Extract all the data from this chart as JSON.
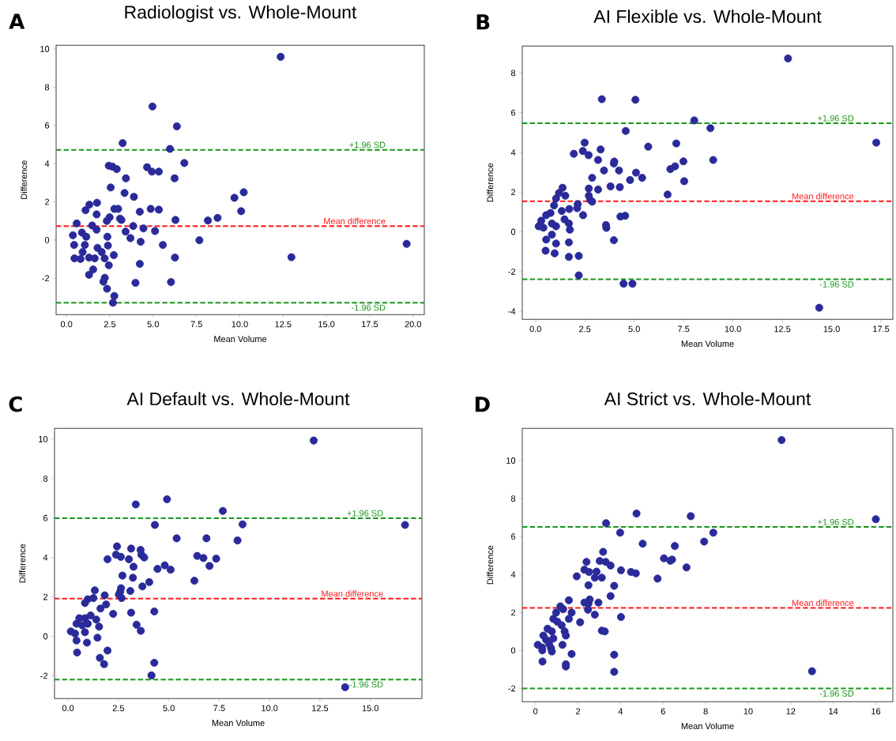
{
  "chart_data": [
    {
      "type": "scatter",
      "title": "Radiologist vs. Whole-Mount",
      "xlabel": "Mean Volume",
      "ylabel": "Difference",
      "color": "#2a2a9a",
      "marker": "circle",
      "x": [
        12.36,
        4.96,
        6.37,
        3.24,
        5.97,
        6.8,
        2.44,
        2.65,
        2.9,
        4.65,
        4.93,
        5.33,
        3.43,
        6.24,
        2.55,
        3.35,
        3.89,
        10.23,
        9.69,
        10.08,
        1.76,
        1.32,
        1.1,
        2.76,
        2.98,
        4.86,
        5.33,
        4.23,
        1.74,
        2.49,
        3.09,
        3.17,
        6.29,
        8.16,
        8.72,
        0.59,
        2.33,
        1.48,
        1.74,
        3.85,
        4.44,
        3.41,
        5.11,
        3.69,
        0.37,
        0.89,
        1.14,
        2.36,
        7.67,
        4.28,
        19.63,
        0.44,
        1.06,
        2.39,
        5.56,
        0.93,
        1.79,
        2.03,
        2.73,
        0.46,
        0.81,
        1.3,
        1.63,
        2.2,
        6.26,
        12.98,
        2.44,
        4.23,
        1.54,
        1.3,
        2.21,
        2.13,
        3.98,
        6.03,
        2.34,
        2.76,
        2.68
      ],
      "values": [
        9.59,
        6.99,
        5.95,
        5.07,
        4.77,
        4.03,
        3.89,
        3.84,
        3.71,
        3.81,
        3.58,
        3.58,
        3.23,
        3.23,
        2.75,
        2.46,
        2.26,
        2.5,
        2.21,
        1.51,
        1.95,
        1.85,
        1.56,
        1.63,
        1.63,
        1.63,
        1.59,
        1.48,
        1.34,
        1.19,
        1.12,
        1.05,
        1.05,
        1.02,
        1.16,
        0.87,
        1.0,
        0.76,
        0.54,
        0.73,
        0.61,
        0.44,
        0.47,
        0.1,
        0.25,
        0.39,
        0.17,
        0.17,
        -0.01,
        -0.09,
        -0.2,
        -0.26,
        -0.26,
        -0.29,
        -0.26,
        -0.63,
        -0.41,
        -0.63,
        -0.79,
        -0.96,
        -0.99,
        -0.92,
        -0.96,
        -0.96,
        -0.92,
        -0.9,
        -1.32,
        -1.25,
        -1.54,
        -1.82,
        -1.98,
        -2.18,
        -2.24,
        -2.2,
        -2.55,
        -2.93,
        -3.28
      ],
      "xlim": [
        -0.6,
        20.65
      ],
      "ylim": [
        -3.9,
        10.2
      ],
      "xticks": [
        {
          "value": 0,
          "label": "0.0"
        },
        {
          "value": 2.5,
          "label": "2.5"
        },
        {
          "value": 5,
          "label": "5.0"
        },
        {
          "value": 7.5,
          "label": "7.5"
        },
        {
          "value": 10,
          "label": "10.0"
        },
        {
          "value": 12.5,
          "label": "12.5"
        },
        {
          "value": 15,
          "label": "15.0"
        },
        {
          "value": 17.5,
          "label": "17.5"
        },
        {
          "value": 20,
          "label": "20.0"
        }
      ],
      "yticks": [
        -2,
        0,
        2,
        4,
        6,
        8,
        10
      ],
      "ref_lines": [
        {
          "axis": "y",
          "value": 4.72,
          "label": "+1.96 SD",
          "color": "#1a961a",
          "line_style": "dashed"
        },
        {
          "axis": "y",
          "value": 0.73,
          "label": "Mean difference",
          "color": "#ff1a1a",
          "line_style": "dashed"
        },
        {
          "axis": "y",
          "value": -3.28,
          "label": "-1.96 SD",
          "color": "#1a961a",
          "line_style": "dashed"
        }
      ],
      "annotations": [
        "A"
      ]
    },
    {
      "type": "scatter",
      "title": "AI Flexible vs. Whole-Mount",
      "xlabel": "Mean Volume",
      "ylabel": "Difference",
      "color": "#2a2a9a",
      "marker": "circle",
      "x": [
        12.79,
        3.36,
        5.06,
        8.04,
        8.86,
        4.57,
        17.26,
        2.49,
        7.13,
        5.71,
        3.3,
        2.4,
        2.69,
        1.94,
        9.0,
        3.17,
        7.49,
        3.99,
        3.97,
        7.07,
        6.83,
        3.47,
        4.23,
        5.09,
        2.87,
        5.4,
        4.79,
        7.53,
        3.8,
        4.27,
        2.7,
        3.17,
        1.37,
        2.7,
        6.69,
        1.19,
        1.51,
        2.77,
        2.87,
        1.04,
        2.14,
        0.94,
        1.71,
        1.33,
        2.11,
        2.41,
        4.3,
        4.54,
        0.54,
        0.76,
        0.29,
        1.47,
        1.69,
        0.83,
        1.04,
        3.57,
        3.59,
        0.16,
        0.4,
        1.74,
        0.83,
        3.97,
        0.54,
        1.04,
        1.69,
        0.51,
        0.97,
        1.69,
        2.19,
        2.19,
        4.46,
        4.91,
        14.37
      ],
      "values": [
        8.73,
        6.68,
        6.65,
        5.61,
        5.22,
        5.08,
        4.49,
        4.49,
        4.45,
        4.29,
        4.15,
        4.07,
        3.86,
        3.93,
        3.62,
        3.62,
        3.55,
        3.54,
        3.44,
        3.3,
        3.16,
        3.09,
        3.09,
        2.98,
        2.72,
        2.72,
        2.61,
        2.55,
        2.29,
        2.25,
        2.18,
        2.13,
        2.22,
        1.82,
        1.88,
        1.96,
        1.82,
        1.61,
        1.52,
        1.68,
        1.4,
        1.33,
        1.15,
        1.05,
        1.19,
        0.84,
        0.77,
        0.81,
        0.84,
        0.95,
        0.56,
        0.63,
        0.42,
        0.42,
        0.28,
        0.34,
        0.2,
        0.28,
        0.21,
        0.11,
        -0.14,
        -0.42,
        -0.39,
        -0.59,
        -0.53,
        -0.95,
        -1.08,
        -1.26,
        -1.21,
        -2.19,
        -2.61,
        -2.61,
        -3.82
      ],
      "xlim": [
        -0.67,
        18.1
      ],
      "ylim": [
        -4.4,
        9.36
      ],
      "xticks": [
        {
          "value": 0,
          "label": "0.0"
        },
        {
          "value": 2.5,
          "label": "2.5"
        },
        {
          "value": 5,
          "label": "5.0"
        },
        {
          "value": 7.5,
          "label": "7.5"
        },
        {
          "value": 10,
          "label": "10.0"
        },
        {
          "value": 12.5,
          "label": "12.5"
        },
        {
          "value": 15,
          "label": "15.0"
        },
        {
          "value": 17.5,
          "label": "17.5"
        }
      ],
      "yticks": [
        -4,
        -2,
        0,
        2,
        4,
        6,
        8
      ],
      "ref_lines": [
        {
          "axis": "y",
          "value": 5.47,
          "label": "+1.96 SD",
          "color": "#1a961a",
          "line_style": "dashed"
        },
        {
          "axis": "y",
          "value": 1.54,
          "label": "Mean difference",
          "color": "#ff1a1a",
          "line_style": "dashed"
        },
        {
          "axis": "y",
          "value": -2.39,
          "label": "-1.96 SD",
          "color": "#1a961a",
          "line_style": "dashed"
        }
      ],
      "annotations": [
        "B"
      ]
    },
    {
      "type": "scatter",
      "title": "AI Default vs. Whole-Mount",
      "xlabel": "Mean Volume",
      "ylabel": "Difference",
      "color": "#2a2a9a",
      "marker": "circle",
      "x": [
        12.19,
        4.91,
        3.36,
        7.68,
        8.66,
        4.31,
        16.72,
        5.39,
        6.87,
        8.41,
        2.43,
        3.13,
        3.6,
        2.38,
        2.62,
        3.64,
        1.96,
        3.02,
        3.78,
        6.41,
        6.72,
        7.35,
        7.02,
        3.25,
        4.8,
        4.44,
        5.09,
        2.7,
        3.22,
        4.03,
        6.27,
        3.69,
        2.63,
        3.09,
        1.33,
        2.59,
        1.82,
        2.52,
        2.66,
        0.98,
        0.84,
        1.26,
        1.89,
        1.61,
        2.24,
        3.13,
        4.28,
        1.12,
        0.84,
        0.56,
        1.4,
        1.54,
        0.42,
        0.7,
        0.98,
        3.4,
        3.61,
        0.14,
        0.35,
        0.84,
        1.46,
        0.42,
        0.94,
        1.96,
        0.45,
        1.58,
        1.79,
        4.28,
        4.14,
        13.75
      ],
      "values": [
        9.93,
        6.95,
        6.69,
        6.36,
        5.68,
        5.65,
        5.65,
        4.97,
        4.97,
        4.86,
        4.56,
        4.45,
        4.38,
        4.14,
        4.03,
        4.14,
        3.91,
        3.91,
        4.0,
        4.08,
        3.97,
        3.94,
        3.57,
        3.53,
        3.6,
        3.42,
        3.38,
        3.08,
        2.97,
        2.75,
        2.82,
        2.53,
        2.44,
        2.3,
        2.33,
        2.26,
        2.08,
        2.12,
        1.94,
        1.88,
        1.69,
        1.94,
        1.62,
        1.41,
        1.14,
        1.2,
        1.26,
        1.06,
        0.92,
        0.92,
        0.85,
        0.49,
        0.64,
        0.56,
        0.64,
        0.59,
        0.28,
        0.25,
        0.14,
        0.21,
        -0.07,
        -0.21,
        -0.32,
        -0.72,
        -0.82,
        -1.09,
        -1.41,
        -1.34,
        -1.98,
        -2.58
      ],
      "xlim": [
        -0.67,
        17.56
      ],
      "ylim": [
        -3.15,
        10.55
      ],
      "xticks": [
        {
          "value": 0,
          "label": "0.0"
        },
        {
          "value": 2.5,
          "label": "2.5"
        },
        {
          "value": 5,
          "label": "5.0"
        },
        {
          "value": 7.5,
          "label": "7.5"
        },
        {
          "value": 10,
          "label": "10.0"
        },
        {
          "value": 12.5,
          "label": "12.5"
        },
        {
          "value": 15,
          "label": "15.0"
        }
      ],
      "yticks": [
        -2,
        0,
        2,
        4,
        6,
        8,
        10
      ],
      "ref_lines": [
        {
          "axis": "y",
          "value": 5.99,
          "label": "+1.96 SD",
          "color": "#1a961a",
          "line_style": "dashed"
        },
        {
          "axis": "y",
          "value": 1.91,
          "label": "Mean difference",
          "color": "#ff1a1a",
          "line_style": "dashed"
        },
        {
          "axis": "y",
          "value": -2.19,
          "label": "-1.96 SD",
          "color": "#1a961a",
          "line_style": "dashed"
        }
      ],
      "annotations": [
        "C"
      ]
    },
    {
      "type": "scatter",
      "title": "AI Strict vs. Whole-Mount",
      "xlabel": "Mean Volume",
      "ylabel": "Difference",
      "color": "#2a2a9a",
      "marker": "circle",
      "x": [
        11.57,
        4.75,
        7.3,
        16.0,
        3.32,
        3.98,
        8.36,
        7.93,
        5.04,
        6.55,
        3.18,
        6.04,
        6.34,
        6.42,
        2.4,
        3.02,
        3.3,
        3.53,
        7.1,
        2.3,
        4.02,
        4.49,
        4.72,
        2.52,
        2.87,
        1.94,
        2.79,
        3.12,
        5.74,
        2.49,
        3.7,
        3.53,
        1.57,
        2.55,
        2.3,
        2.49,
        2.96,
        1.17,
        1.3,
        2.47,
        1.7,
        0.97,
        2.79,
        4.02,
        0.84,
        1.57,
        1.03,
        2.1,
        1.23,
        0.57,
        0.77,
        3.12,
        3.26,
        1.37,
        1.43,
        0.37,
        0.5,
        0.84,
        0.64,
        1.27,
        0.11,
        0.31,
        0.73,
        0.32,
        0.77,
        1.7,
        3.7,
        0.33,
        1.43,
        1.43,
        3.7,
        13.0
      ],
      "values": [
        11.08,
        7.21,
        7.07,
        6.91,
        6.7,
        6.2,
        6.2,
        5.73,
        5.62,
        5.5,
        5.19,
        4.85,
        4.72,
        4.78,
        4.66,
        4.71,
        4.66,
        4.47,
        4.37,
        4.25,
        4.22,
        4.13,
        4.06,
        4.13,
        4.15,
        3.9,
        3.83,
        3.83,
        3.78,
        3.43,
        3.4,
        2.86,
        2.64,
        2.68,
        2.52,
        2.46,
        2.52,
        2.32,
        2.17,
        2.14,
        1.99,
        1.99,
        1.88,
        1.76,
        1.66,
        1.66,
        1.51,
        1.48,
        1.32,
        1.14,
        1.0,
        1.04,
        1.0,
        1.0,
        0.78,
        0.78,
        0.56,
        0.63,
        0.34,
        0.29,
        0.29,
        0.15,
        0.12,
        0.0,
        -0.06,
        -0.19,
        -0.23,
        -0.59,
        -0.73,
        -0.85,
        -1.13,
        -1.1
      ],
      "xlim": [
        -0.62,
        16.8
      ],
      "ylim": [
        -2.7,
        11.7
      ],
      "xticks": [
        0,
        2,
        4,
        6,
        8,
        10,
        12,
        14,
        16
      ],
      "yticks": [
        -2,
        0,
        2,
        4,
        6,
        8,
        10
      ],
      "ref_lines": [
        {
          "axis": "y",
          "value": 6.5,
          "label": "+1.96 SD",
          "color": "#1a961a",
          "line_style": "dashed"
        },
        {
          "axis": "y",
          "value": 2.24,
          "label": "Mean difference",
          "color": "#ff1a1a",
          "line_style": "dashed"
        },
        {
          "axis": "y",
          "value": -2.01,
          "label": "-1.96 SD",
          "color": "#1a961a",
          "line_style": "dashed"
        }
      ],
      "annotations": [
        "D"
      ]
    }
  ]
}
